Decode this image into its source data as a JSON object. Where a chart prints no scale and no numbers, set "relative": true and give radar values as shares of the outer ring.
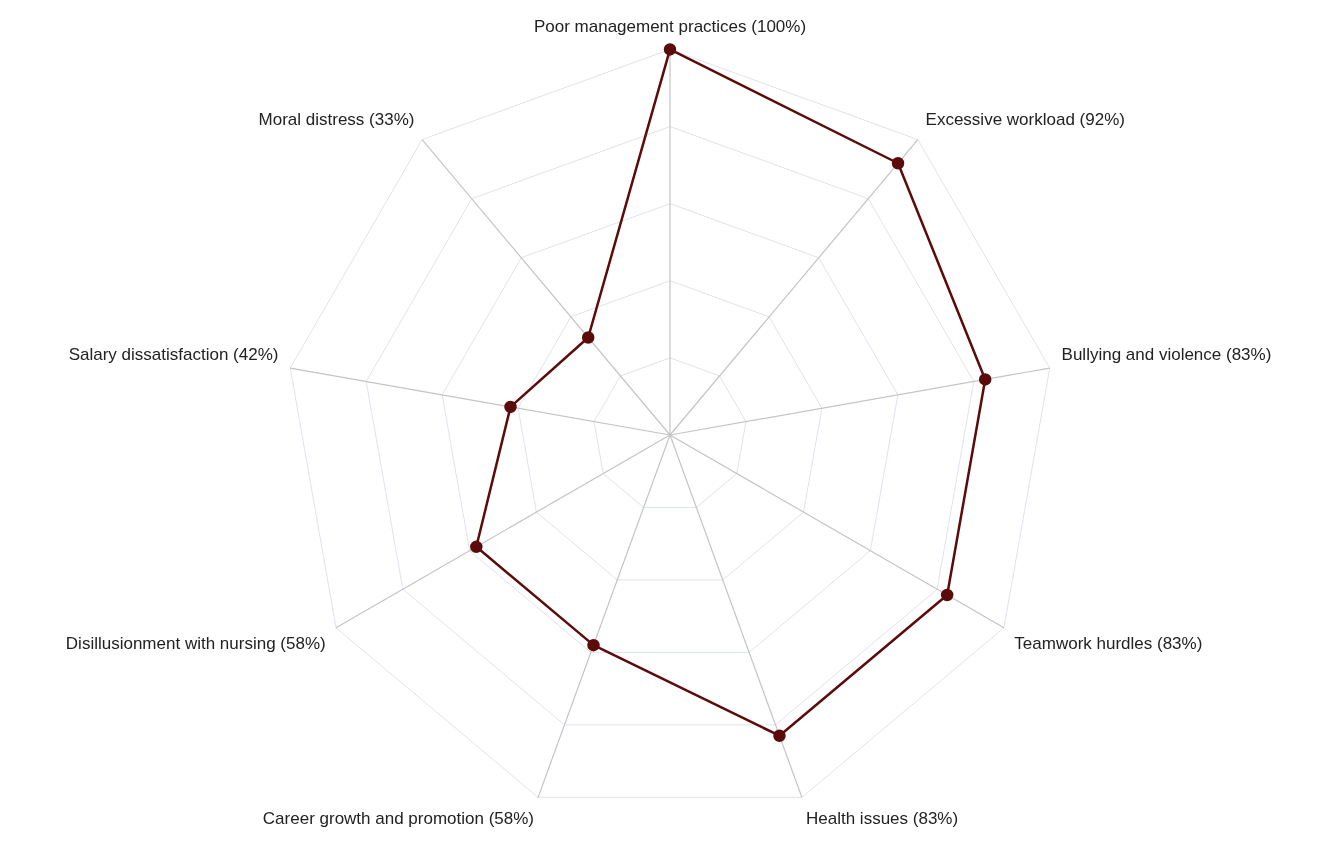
{
  "chart_data": {
    "type": "radar",
    "relative": true,
    "grid": true,
    "marker": "circle",
    "line_style": "solid",
    "categories": [
      "Poor management practices (100%)",
      "Excessive workload (92%)",
      "Bullying and violence (83%)",
      "Teamwork hurdles (83%)",
      "Health issues (83%)",
      "Career growth and promotion (58%)",
      "Disillusionment with nursing (58%)",
      "Salary dissatisfaction (42%)",
      "Moral distress (33%)"
    ],
    "series": [
      {
        "color": "#5c0b0b",
        "values": [
          1,
          0.92,
          0.83,
          0.83,
          0.83,
          0.58,
          0.58,
          0.42,
          0.33
        ]
      }
    ]
  }
}
